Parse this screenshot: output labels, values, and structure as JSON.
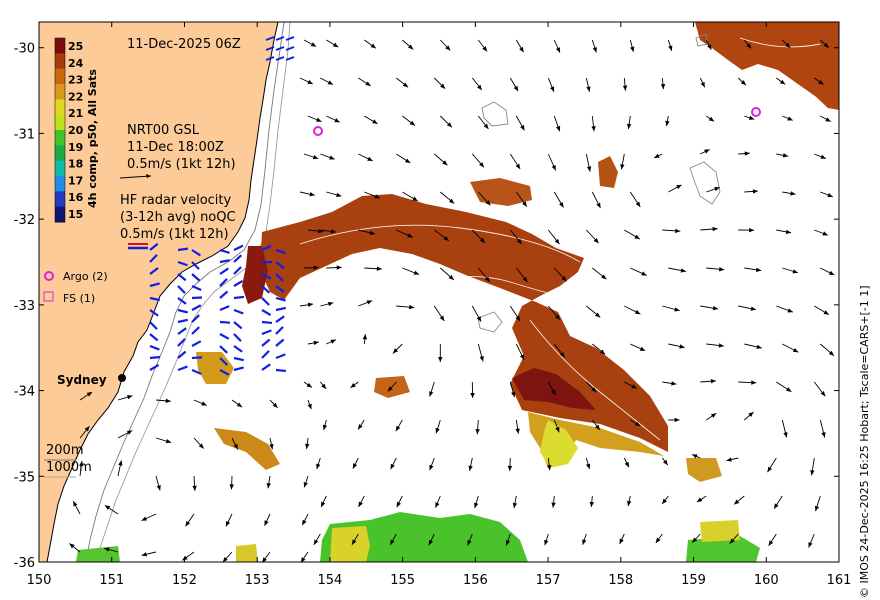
{
  "map": {
    "date": "11-Dec-2025 06Z",
    "x_ticks": [
      "150",
      "151",
      "152",
      "153",
      "154",
      "155",
      "156",
      "157",
      "158",
      "159",
      "160",
      "161"
    ],
    "y_ticks": [
      "-30",
      "-31",
      "-32",
      "-33",
      "-34",
      "-35",
      "-36"
    ],
    "lon_range": [
      150,
      161
    ],
    "lat_range": [
      -36,
      -29.7
    ],
    "land_color": "#fdcb98",
    "city": "Sydney"
  },
  "colorbar": {
    "ticks": [
      "25",
      "24",
      "23",
      "22",
      "21",
      "20",
      "19",
      "18",
      "17",
      "16",
      "15"
    ],
    "label": "4h comp, p50, All Sats",
    "colors": [
      "#7a0d0d",
      "#a83a10",
      "#c96a10",
      "#d89a1a",
      "#e2d61e",
      "#bfe020",
      "#41c32a",
      "#1dab4a",
      "#0fbaa8",
      "#1d8ee0",
      "#223bbf",
      "#121570"
    ]
  },
  "legend": {
    "nrt_line1": "NRT00 GSL",
    "nrt_line2": "11-Dec 18:00Z",
    "nrt_line3": "0.5m/s (1kt 12h)",
    "hf_line1": "HF radar velocity",
    "hf_line2": "(3-12h avg) noQC",
    "hf_line3": "0.5m/s (1kt 12h)",
    "argo": "Argo (2)",
    "fs": "FS (1)",
    "depth1": "200m",
    "depth2": "1000m"
  },
  "credit": "© IMOS 24-Dec-2025 16:25 Hobart; Tscale=CARS+[-1 1]"
}
